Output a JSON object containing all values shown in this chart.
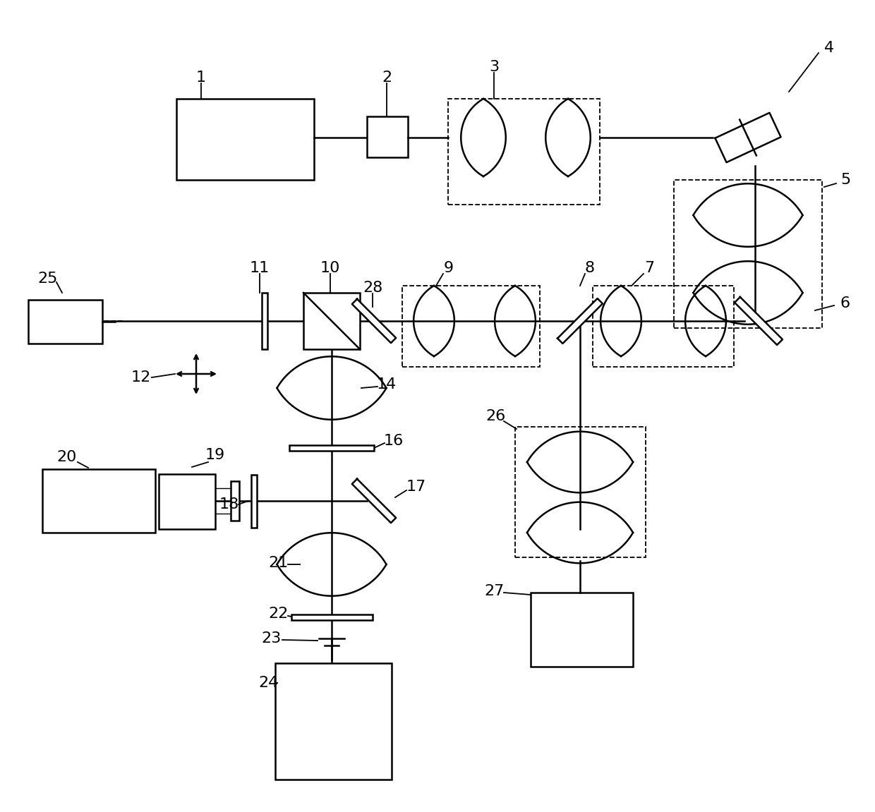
{
  "bg_color": "#ffffff",
  "line_color": "#000000",
  "lw": 1.8,
  "lw_dash": 1.3,
  "figsize": [
    12.4,
    11.51
  ],
  "dpi": 100,
  "label_fs": 16
}
